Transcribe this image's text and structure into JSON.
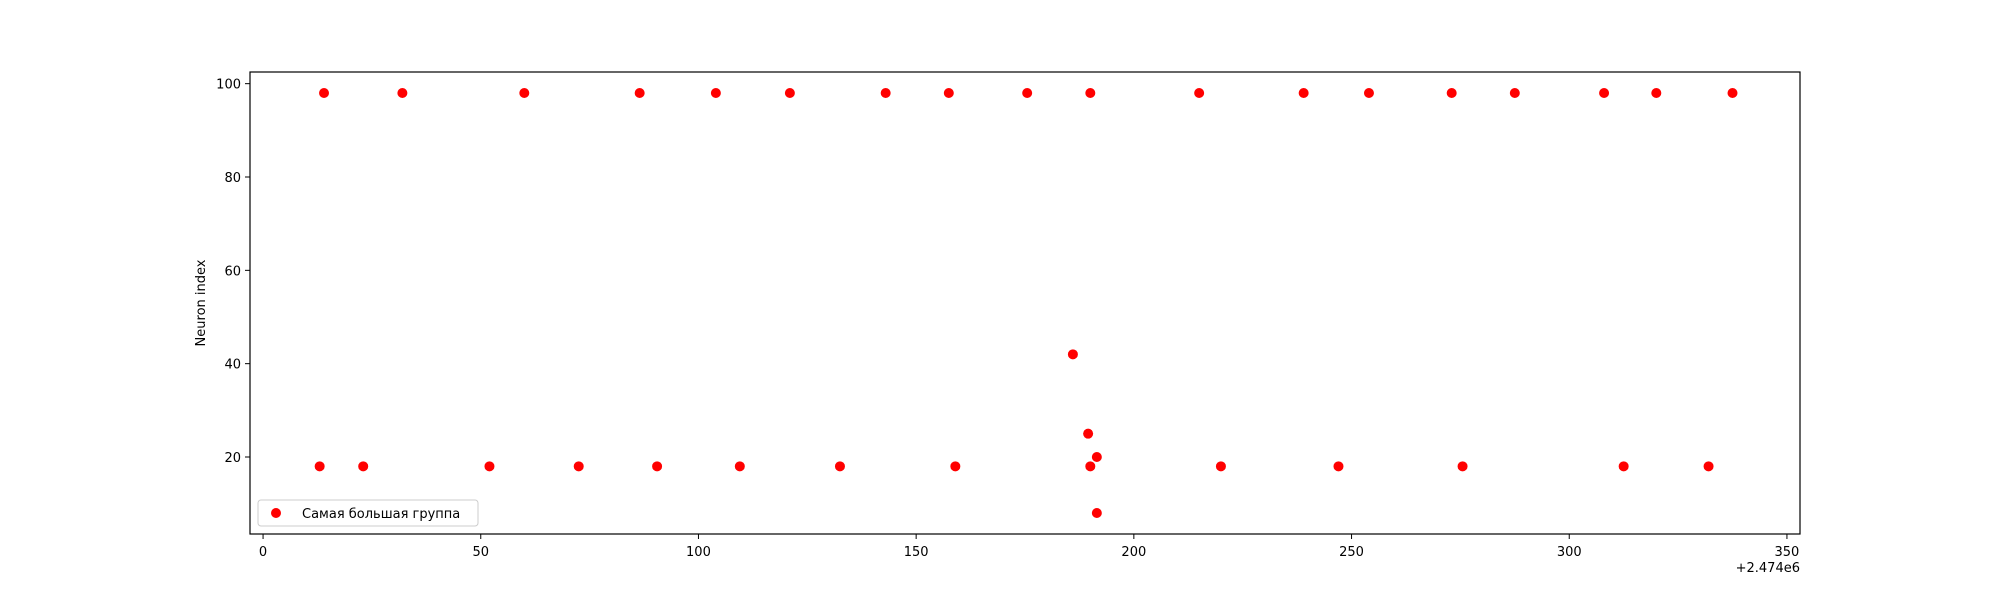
{
  "chart_data": {
    "type": "scatter",
    "title": "",
    "xlabel": "",
    "ylabel": "Neuron index",
    "x_offset_label": "+2.474e6",
    "xlim": [
      -3,
      353
    ],
    "ylim": [
      3.5,
      102.5
    ],
    "xticks": [
      0,
      50,
      100,
      150,
      200,
      250,
      300,
      350
    ],
    "yticks": [
      20,
      40,
      60,
      80,
      100
    ],
    "grid": false,
    "legend_position": "lower-left",
    "series": [
      {
        "name": "Самая большая группа",
        "color": "#ff0000",
        "points": [
          {
            "x": 14,
            "y": 98
          },
          {
            "x": 32,
            "y": 98
          },
          {
            "x": 60,
            "y": 98
          },
          {
            "x": 86.5,
            "y": 98
          },
          {
            "x": 104,
            "y": 98
          },
          {
            "x": 121,
            "y": 98
          },
          {
            "x": 143,
            "y": 98
          },
          {
            "x": 157.5,
            "y": 98
          },
          {
            "x": 175.5,
            "y": 98
          },
          {
            "x": 190,
            "y": 98
          },
          {
            "x": 215,
            "y": 98
          },
          {
            "x": 239,
            "y": 98
          },
          {
            "x": 254,
            "y": 98
          },
          {
            "x": 273,
            "y": 98
          },
          {
            "x": 287.5,
            "y": 98
          },
          {
            "x": 308,
            "y": 98
          },
          {
            "x": 320,
            "y": 98
          },
          {
            "x": 337.5,
            "y": 98
          },
          {
            "x": 186,
            "y": 42
          },
          {
            "x": 189.5,
            "y": 25
          },
          {
            "x": 191.5,
            "y": 20
          },
          {
            "x": 13,
            "y": 18
          },
          {
            "x": 23,
            "y": 18
          },
          {
            "x": 52,
            "y": 18
          },
          {
            "x": 72.5,
            "y": 18
          },
          {
            "x": 90.5,
            "y": 18
          },
          {
            "x": 109.5,
            "y": 18
          },
          {
            "x": 132.5,
            "y": 18
          },
          {
            "x": 159,
            "y": 18
          },
          {
            "x": 190,
            "y": 18
          },
          {
            "x": 220,
            "y": 18
          },
          {
            "x": 247,
            "y": 18
          },
          {
            "x": 275.5,
            "y": 18
          },
          {
            "x": 312.5,
            "y": 18
          },
          {
            "x": 332,
            "y": 18
          },
          {
            "x": 191.5,
            "y": 8
          }
        ]
      }
    ]
  }
}
